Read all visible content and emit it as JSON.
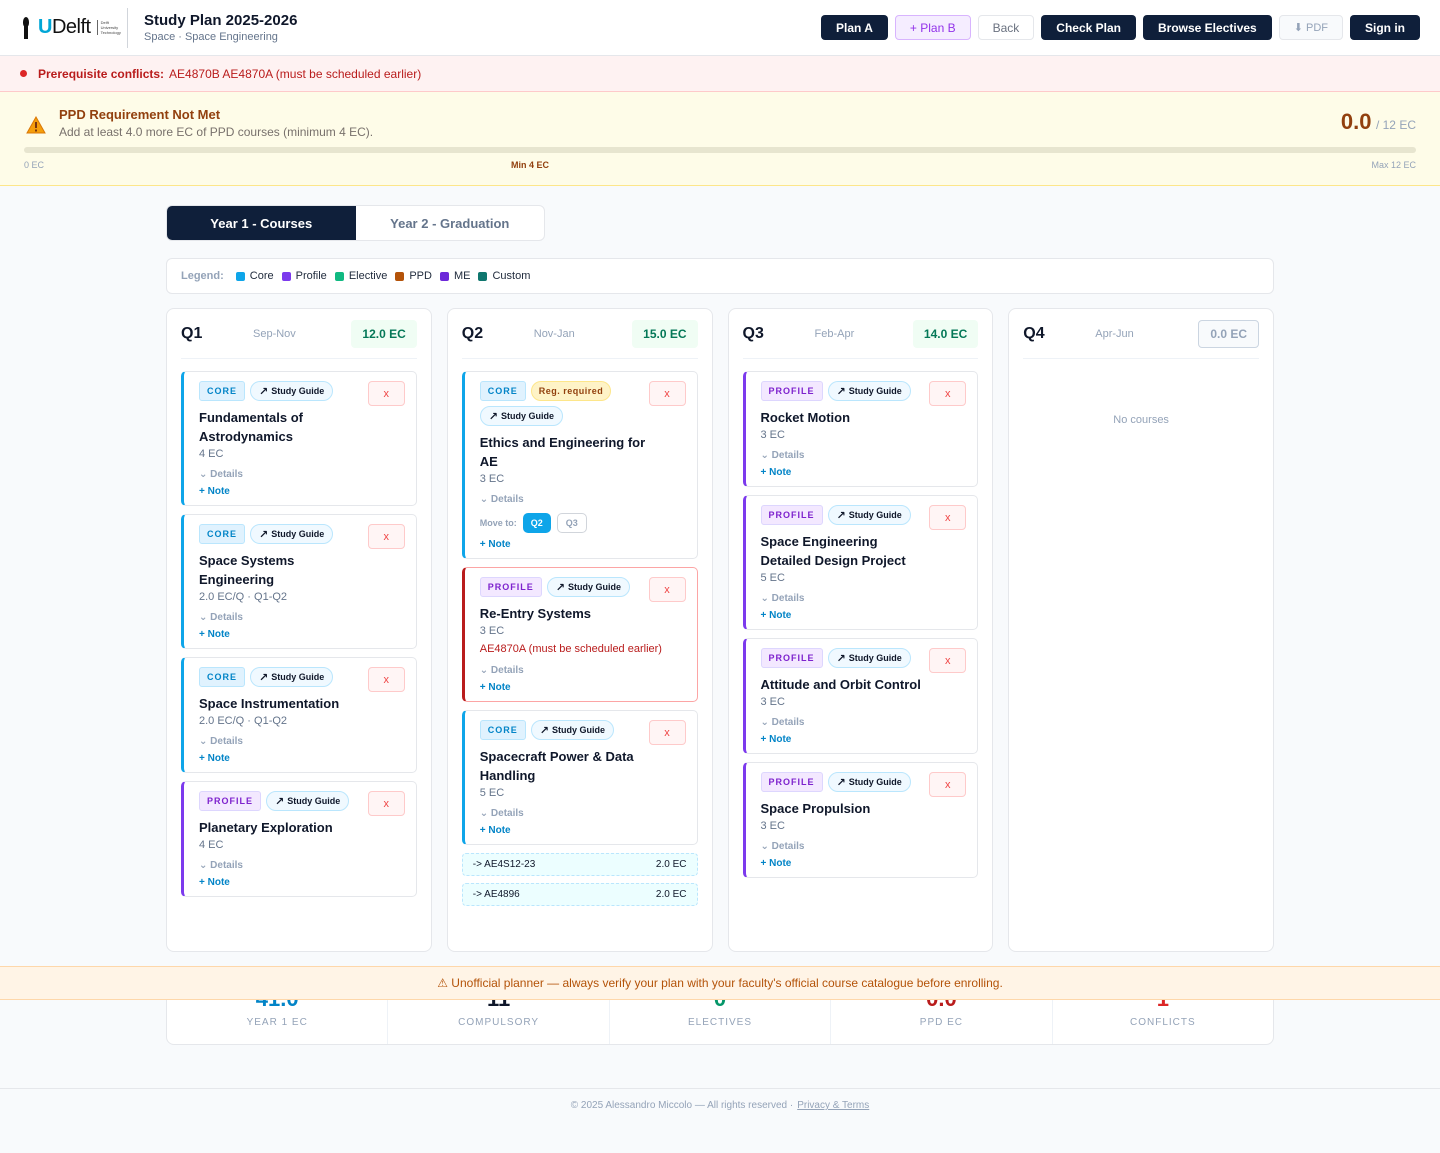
{
  "header": {
    "logo_text_a": "T",
    "logo_text_b": "U",
    "logo_text_c": "Delft",
    "logo_sub": "Delft University Technology",
    "title": "Study Plan 2025-2026",
    "subtitle": "Space · Space Engineering",
    "buttons": {
      "plan_a": "Plan A",
      "plan_b": "+ Plan B",
      "back": "Back",
      "check_plan": "Check Plan",
      "browse": "Browse Electives",
      "pdf": "⬇ PDF",
      "sign_in": "Sign in"
    }
  },
  "conflict_banner": {
    "label": "Prerequisite conflicts:",
    "text": "AE4870B AE4870A (must be scheduled earlier)"
  },
  "ppd": {
    "title": "PPD Requirement Not Met",
    "desc": "Add at least 4.0 more EC of PPD courses (minimum 4 EC).",
    "score": "0.0",
    "max": "/ 12 EC",
    "tick_zero": "0 EC",
    "tick_min": "Min 4 EC",
    "tick_max": "Max 12 EC",
    "progress_fraction": 0.0
  },
  "year_tabs": {
    "y1": "Year 1 - Courses",
    "y2": "Year 2 - Graduation"
  },
  "legend": {
    "label": "Legend:",
    "items": [
      {
        "label": "Core",
        "color": "#0ea5e9"
      },
      {
        "label": "Profile",
        "color": "#7c3aed"
      },
      {
        "label": "Elective",
        "color": "#10b981"
      },
      {
        "label": "PPD",
        "color": "#b45309"
      },
      {
        "label": "ME",
        "color": "#6d28d9"
      },
      {
        "label": "Custom",
        "color": "#0f766e"
      }
    ]
  },
  "common": {
    "study_guide": "Study Guide",
    "remove": "x",
    "details": "Details",
    "note": "+ Note",
    "core": "CORE",
    "profile": "PROFILE",
    "reg_required": "Reg. required",
    "move_to": "Move to:",
    "no_courses": "No courses"
  },
  "quarters": {
    "q1": {
      "name": "Q1",
      "range": "Sep-Nov",
      "ec": "12.0 EC",
      "courses": [
        {
          "name": "Fundamentals of Astrodynamics",
          "ec": "4 EC"
        },
        {
          "name": "Space Systems Engineering",
          "ec": "2.0 EC/Q · Q1-Q2"
        },
        {
          "name": "Space Instrumentation",
          "ec": "2.0 EC/Q · Q1-Q2"
        },
        {
          "name": "Planetary Exploration",
          "ec": "4 EC"
        }
      ]
    },
    "q2": {
      "name": "Q2",
      "range": "Nov-Jan",
      "ec": "15.0 EC",
      "courses": [
        {
          "name": "Ethics and Engineering for AE",
          "ec": "3 EC",
          "move_a": "Q2",
          "move_b": "Q3"
        },
        {
          "name": "Re-Entry Systems",
          "ec": "3 EC",
          "conflict": "AE4870A (must be scheduled earlier)"
        },
        {
          "name": "Spacecraft Power & Data Handling",
          "ec": "5 EC"
        }
      ],
      "continuations": [
        {
          "code": "-> AE4S12-23",
          "ec": "2.0 EC"
        },
        {
          "code": "-> AE4896",
          "ec": "2.0 EC"
        }
      ]
    },
    "q3": {
      "name": "Q3",
      "range": "Feb-Apr",
      "ec": "14.0 EC",
      "courses": [
        {
          "name": "Rocket Motion",
          "ec": "3 EC"
        },
        {
          "name": "Space Engineering Detailed Design Project",
          "ec": "5 EC"
        },
        {
          "name": "Attitude and Orbit Control",
          "ec": "3 EC"
        },
        {
          "name": "Space Propulsion",
          "ec": "3 EC"
        }
      ]
    },
    "q4": {
      "name": "Q4",
      "range": "Apr-Jun",
      "ec": "0.0 EC"
    }
  },
  "stats": [
    {
      "value": "41.0",
      "label": "YEAR 1 EC",
      "color": "#0284c7"
    },
    {
      "value": "11",
      "label": "COMPULSORY",
      "color": "#0f172a"
    },
    {
      "value": "0",
      "label": "ELECTIVES",
      "color": "#059669"
    },
    {
      "value": "0.0",
      "label": "PPD EC",
      "color": "#b91c1c"
    },
    {
      "value": "1",
      "label": "CONFLICTS",
      "color": "#dc2626"
    }
  ],
  "disclaimer": "⚠ Unofficial planner — always verify your plan with your faculty's official course catalogue before enrolling.",
  "footer": {
    "copyright": "© 2025 Alessandro Miccolo — All rights reserved ·",
    "link": "Privacy & Terms"
  }
}
